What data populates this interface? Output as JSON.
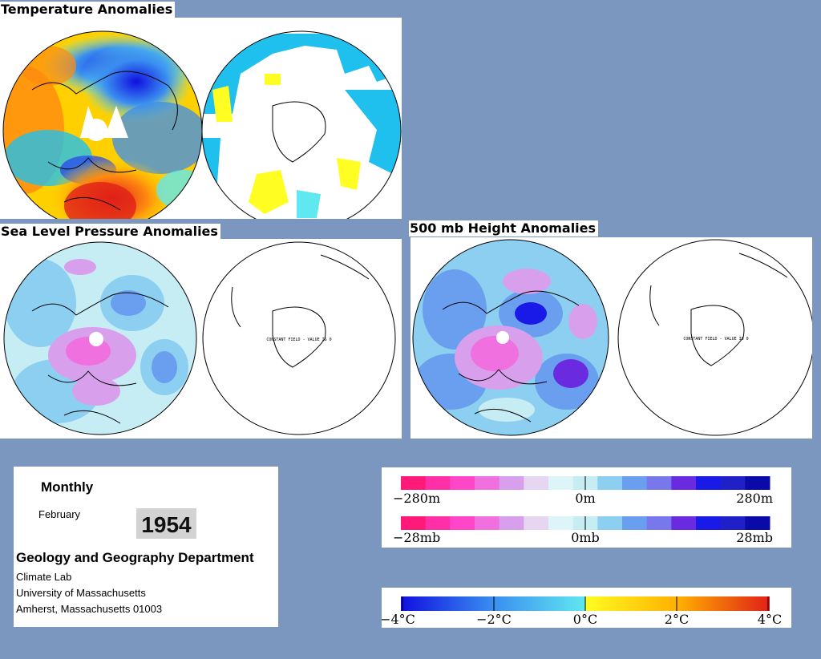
{
  "titles": {
    "temperature": "Temperature Anomalies",
    "slp": "Sea Level Pressure Anomalies",
    "height500": "500 mb Height Anomalies"
  },
  "map_annotation": {
    "constant_field": "CONSTANT FIELD - VALUE IS 0"
  },
  "info": {
    "period": "Monthly",
    "month": "February",
    "year": "1954",
    "department": "Geology and Geography Department",
    "lines": [
      "Climate Lab",
      "University of Massachusetts",
      "Amherst, Massachusetts 01003"
    ]
  },
  "legends": {
    "height": {
      "labels": [
        "−280m",
        "0m",
        "280m"
      ]
    },
    "pressure": {
      "labels": [
        "−28mb",
        "0mb",
        "28mb"
      ]
    },
    "temperature": {
      "labels": [
        "−4°C",
        "−2°C",
        "0°C",
        "2°C",
        "4°C"
      ]
    }
  },
  "colors": {
    "background": "#7b97bf",
    "anomaly_scale": [
      "#ff1a7a",
      "#ff2fa8",
      "#ff45c8",
      "#f070e0",
      "#d8a0ec",
      "#e6d6f2",
      "#ddf4f8",
      "#c6ecf4",
      "#8ccff0",
      "#6a9ff0",
      "#7878ec",
      "#6a2ae0",
      "#1a1ae8",
      "#2020c8",
      "#0a0aa8"
    ],
    "temperature_scale": [
      "#1010e0",
      "#2a50e8",
      "#3a8ef0",
      "#20c0ee",
      "#60e8f0",
      "#fffd22",
      "#ffd000",
      "#ffb000",
      "#ff8a10",
      "#f46018",
      "#e02018"
    ]
  },
  "maps": [
    {
      "id": "temperature-north",
      "projection": "north-polar",
      "field": "temperature anomaly"
    },
    {
      "id": "temperature-south",
      "projection": "south-polar",
      "field": "temperature anomaly"
    },
    {
      "id": "slp-north",
      "projection": "north-polar",
      "field": "sea level pressure anomaly"
    },
    {
      "id": "slp-south",
      "projection": "south-polar",
      "field": "sea level pressure anomaly"
    },
    {
      "id": "height500-north",
      "projection": "north-polar",
      "field": "500 mb height anomaly"
    },
    {
      "id": "height500-south",
      "projection": "south-polar",
      "field": "500 mb height anomaly"
    }
  ]
}
